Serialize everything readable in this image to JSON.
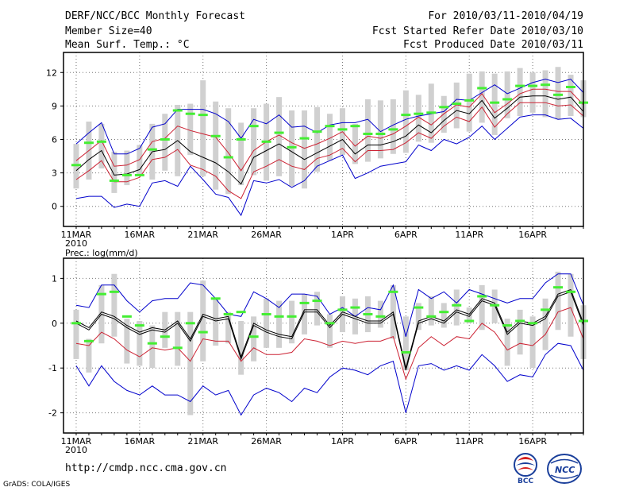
{
  "header": {
    "title": "DERF/NCC/BCC Monthly Forecast",
    "member_size": "Member Size=40",
    "variable": "Mean Surf. Temp.: °C",
    "period": "For 2010/03/11-2010/04/19",
    "started": "Fcst Started Refer Date 2010/03/10",
    "produced": "Fcst Produced Date 2010/03/11"
  },
  "footer": {
    "url": "http://cmdp.ncc.cma.gov.cn",
    "grads": "GrADS: COLA/IGES",
    "logo_bcc": "BCC",
    "logo_ncc": "NCC"
  },
  "colors": {
    "blue": "#0000cc",
    "red": "#cc2233",
    "black": "#000000",
    "green": "#44ee33",
    "gray": "#d0d0d0",
    "grid": "#777777"
  },
  "chart_data": [
    {
      "type": "line",
      "title": "Mean Surf. Temp.: °C",
      "x_labels": [
        "11MAR",
        "16MAR",
        "21MAR",
        "26MAR",
        "1APR",
        "6APR",
        "11APR",
        "16APR"
      ],
      "x_label_days": [
        1,
        6,
        11,
        16,
        22,
        27,
        32,
        37
      ],
      "year_label": "2010",
      "xlim": [
        0,
        41
      ],
      "ylim": [
        -1.8,
        13.8
      ],
      "yticks": [
        0,
        3,
        6,
        9,
        12
      ],
      "grid": true,
      "series": [
        {
          "name": "max",
          "color": "blue",
          "values": [
            5.6,
            6.6,
            7.5,
            4.7,
            4.7,
            5.2,
            7.1,
            7.4,
            8.7,
            8.7,
            8.7,
            8.3,
            7.6,
            6.1,
            7.8,
            7.4,
            8.2,
            7.1,
            7.2,
            6.6,
            7.3,
            7.5,
            7.5,
            7.8,
            6.7,
            7.3,
            7.8,
            8.1,
            8.3,
            8.5,
            9.6,
            9.5,
            10.2,
            10.9,
            10.1,
            10.6,
            11.1,
            11.4,
            11.1,
            11.4,
            10.2
          ]
        },
        {
          "name": "upper",
          "color": "red",
          "values": [
            4.1,
            5.0,
            5.9,
            3.6,
            3.7,
            4.2,
            5.8,
            6.1,
            7.2,
            6.8,
            6.5,
            6.2,
            4.8,
            3.2,
            5.0,
            5.8,
            6.4,
            5.7,
            5.2,
            5.6,
            6.1,
            6.7,
            5.4,
            6.3,
            6.1,
            6.5,
            7.2,
            8.0,
            7.3,
            8.3,
            9.1,
            8.9,
            10.1,
            8.4,
            9.2,
            10.1,
            10.5,
            10.5,
            10.3,
            10.3,
            9.1
          ]
        },
        {
          "name": "median",
          "color": "black",
          "values": [
            3.2,
            4.2,
            5.0,
            2.8,
            2.9,
            3.3,
            4.9,
            5.1,
            5.9,
            4.9,
            4.4,
            3.9,
            3.1,
            2.0,
            4.4,
            5.0,
            5.6,
            4.9,
            4.2,
            4.8,
            5.4,
            6.0,
            4.7,
            5.5,
            5.5,
            5.8,
            6.3,
            7.3,
            6.6,
            7.7,
            8.6,
            8.3,
            9.5,
            7.9,
            8.8,
            9.8,
            9.9,
            9.9,
            9.6,
            9.8,
            8.5
          ]
        },
        {
          "name": "lower",
          "color": "red",
          "values": [
            2.4,
            3.2,
            4.1,
            2.2,
            2.2,
            2.6,
            4.2,
            4.4,
            5.1,
            3.7,
            3.3,
            2.7,
            1.4,
            0.7,
            3.1,
            3.6,
            4.2,
            3.6,
            3.3,
            4.3,
            4.6,
            5.2,
            4.0,
            5.0,
            5.0,
            5.1,
            5.7,
            6.6,
            6.1,
            7.2,
            8.0,
            7.6,
            8.9,
            7.1,
            8.3,
            9.3,
            9.3,
            9.3,
            9.0,
            9.1,
            8.1
          ]
        },
        {
          "name": "min",
          "color": "blue",
          "values": [
            0.7,
            0.9,
            0.9,
            -0.1,
            0.2,
            0.0,
            2.1,
            2.3,
            1.8,
            3.6,
            2.4,
            1.1,
            0.8,
            -0.8,
            2.3,
            2.1,
            2.4,
            1.7,
            2.3,
            3.6,
            4.1,
            4.6,
            2.5,
            3.0,
            3.6,
            3.8,
            4.0,
            5.5,
            5.0,
            6.0,
            5.6,
            6.2,
            7.2,
            6.0,
            7.0,
            8.0,
            8.2,
            8.2,
            7.8,
            7.9,
            7.0
          ]
        }
      ],
      "ensemble_ranges": [
        [
          1.6,
          5.6
        ],
        [
          2.4,
          7.6
        ],
        [
          3.4,
          7.4
        ],
        [
          1.2,
          4.9
        ],
        [
          1.9,
          5.0
        ],
        [
          2.8,
          5.5
        ],
        [
          2.4,
          7.4
        ],
        [
          3.2,
          8.3
        ],
        [
          2.7,
          9.1
        ],
        [
          4.6,
          9.2
        ],
        [
          2.7,
          11.3
        ],
        [
          1.5,
          9.4
        ],
        [
          1.1,
          8.8
        ],
        [
          1.9,
          7.5
        ],
        [
          2.8,
          8.8
        ],
        [
          2.3,
          9.2
        ],
        [
          2.7,
          9.8
        ],
        [
          1.8,
          8.6
        ],
        [
          1.6,
          8.6
        ],
        [
          3.1,
          8.9
        ],
        [
          4.1,
          8.3
        ],
        [
          4.6,
          8.8
        ],
        [
          3.8,
          7.4
        ],
        [
          4.0,
          9.6
        ],
        [
          4.3,
          9.5
        ],
        [
          4.7,
          9.6
        ],
        [
          4.8,
          10.4
        ],
        [
          5.8,
          10.0
        ],
        [
          5.7,
          11.0
        ],
        [
          6.6,
          9.9
        ],
        [
          7.0,
          11.1
        ],
        [
          6.7,
          11.9
        ],
        [
          7.5,
          12.1
        ],
        [
          6.4,
          11.9
        ],
        [
          7.9,
          12.1
        ],
        [
          8.1,
          12.4
        ],
        [
          8.4,
          12.0
        ],
        [
          8.0,
          12.2
        ],
        [
          7.8,
          12.5
        ],
        [
          8.1,
          11.8
        ],
        [
          8.0,
          11.3
        ]
      ],
      "ensemble_mean": [
        3.7,
        5.7,
        5.8,
        2.3,
        2.8,
        2.8,
        5.1,
        6.0,
        8.6,
        8.3,
        8.2,
        6.3,
        4.4,
        6.0,
        7.2,
        5.8,
        6.6,
        5.3,
        6.1,
        6.7,
        7.2,
        6.9,
        7.2,
        6.5,
        6.5,
        6.9,
        8.2,
        8.3,
        8.4,
        8.9,
        9.2,
        9.5,
        10.6,
        9.3,
        9.6,
        10.8,
        10.8,
        10.9,
        10.0,
        10.7,
        9.3
      ]
    },
    {
      "type": "line",
      "title": "Prec.: log(mm/d)",
      "x_labels": [
        "11MAR",
        "16MAR",
        "21MAR",
        "26MAR",
        "1APR",
        "6APR",
        "11APR",
        "16APR"
      ],
      "x_label_days": [
        1,
        6,
        11,
        16,
        22,
        27,
        32,
        37
      ],
      "year_label": "2010",
      "xlim": [
        0,
        41
      ],
      "ylim": [
        -2.45,
        1.45
      ],
      "yticks": [
        -2,
        -1,
        0,
        1
      ],
      "grid": true,
      "series": [
        {
          "name": "max",
          "color": "blue",
          "values": [
            0.4,
            0.35,
            0.85,
            0.85,
            0.5,
            0.25,
            0.5,
            0.55,
            0.55,
            0.9,
            0.85,
            0.55,
            0.2,
            0.15,
            0.7,
            0.55,
            0.35,
            0.65,
            0.65,
            0.6,
            0.2,
            0.35,
            0.15,
            0.35,
            0.3,
            0.85,
            -0.3,
            0.75,
            0.55,
            0.7,
            0.45,
            0.75,
            0.65,
            0.55,
            0.45,
            0.55,
            0.55,
            0.9,
            1.1,
            1.1,
            0.4
          ]
        },
        {
          "name": "upper",
          "color": "black",
          "values": [
            0.05,
            -0.1,
            0.25,
            0.15,
            -0.05,
            -0.2,
            -0.1,
            -0.15,
            0.05,
            -0.35,
            0.2,
            0.1,
            0.15,
            -0.75,
            0.0,
            -0.15,
            -0.25,
            -0.3,
            0.3,
            0.3,
            -0.05,
            0.25,
            0.15,
            0.05,
            0.05,
            0.25,
            -1.0,
            0.05,
            0.15,
            0.05,
            0.3,
            0.2,
            0.55,
            0.45,
            -0.2,
            0.05,
            0.0,
            0.15,
            0.65,
            0.75,
            0.0
          ]
        },
        {
          "name": "median",
          "color": "black",
          "values": [
            0.0,
            -0.15,
            0.2,
            0.1,
            -0.1,
            -0.25,
            -0.15,
            -0.2,
            0.0,
            -0.4,
            0.15,
            0.05,
            0.1,
            -0.8,
            -0.05,
            -0.2,
            -0.3,
            -0.35,
            0.25,
            0.25,
            -0.1,
            0.2,
            0.1,
            0.0,
            0.0,
            0.2,
            -1.05,
            0.0,
            0.1,
            0.0,
            0.25,
            0.15,
            0.5,
            0.4,
            -0.25,
            0.0,
            -0.05,
            0.1,
            0.6,
            0.7,
            -0.05
          ]
        },
        {
          "name": "lower",
          "color": "red",
          "values": [
            -0.45,
            -0.5,
            -0.2,
            -0.35,
            -0.6,
            -0.75,
            -0.55,
            -0.6,
            -0.55,
            -0.85,
            -0.35,
            -0.4,
            -0.4,
            -0.85,
            -0.55,
            -0.7,
            -0.7,
            -0.65,
            -0.35,
            -0.4,
            -0.5,
            -0.4,
            -0.45,
            -0.4,
            -0.4,
            -0.3,
            -1.25,
            -0.55,
            -0.3,
            -0.5,
            -0.3,
            -0.35,
            0.0,
            -0.2,
            -0.6,
            -0.45,
            -0.5,
            -0.25,
            0.25,
            0.35,
            -0.35
          ]
        },
        {
          "name": "min",
          "color": "blue",
          "values": [
            -0.95,
            -1.4,
            -0.95,
            -1.3,
            -1.5,
            -1.6,
            -1.4,
            -1.6,
            -1.6,
            -1.75,
            -1.4,
            -1.6,
            -1.5,
            -2.05,
            -1.6,
            -1.45,
            -1.55,
            -1.75,
            -1.45,
            -1.55,
            -1.2,
            -1.0,
            -1.05,
            -1.15,
            -0.95,
            -0.85,
            -2.0,
            -0.95,
            -0.9,
            -1.05,
            -0.95,
            -1.05,
            -0.7,
            -0.95,
            -1.3,
            -1.15,
            -1.2,
            -0.7,
            -0.45,
            -0.5,
            -1.05
          ]
        }
      ],
      "ensemble_ranges": [
        [
          -0.8,
          0.3
        ],
        [
          -1.1,
          -0.35
        ],
        [
          -0.45,
          0.85
        ],
        [
          -0.3,
          1.1
        ],
        [
          -0.9,
          0.1
        ],
        [
          -0.95,
          0.05
        ],
        [
          -1.0,
          -0.05
        ],
        [
          -0.55,
          0.25
        ],
        [
          -0.95,
          0.25
        ],
        [
          -2.05,
          0.25
        ],
        [
          -0.85,
          0.95
        ],
        [
          -0.5,
          0.55
        ],
        [
          -0.45,
          0.25
        ],
        [
          -1.15,
          0.05
        ],
        [
          -0.85,
          0.15
        ],
        [
          -0.55,
          0.55
        ],
        [
          -0.55,
          0.5
        ],
        [
          -0.45,
          0.5
        ],
        [
          -0.25,
          0.65
        ],
        [
          -0.05,
          0.7
        ],
        [
          -0.55,
          0.2
        ],
        [
          -0.2,
          0.6
        ],
        [
          -0.25,
          0.55
        ],
        [
          -0.2,
          0.6
        ],
        [
          -0.1,
          0.5
        ],
        [
          -0.35,
          0.85
        ],
        [
          -1.05,
          0.15
        ],
        [
          -0.15,
          0.45
        ],
        [
          -0.05,
          0.6
        ],
        [
          -0.1,
          0.45
        ],
        [
          -0.05,
          0.75
        ],
        [
          0.0,
          0.35
        ],
        [
          -0.15,
          0.85
        ],
        [
          0.0,
          0.75
        ],
        [
          -0.95,
          0.1
        ],
        [
          -0.7,
          0.3
        ],
        [
          -1.0,
          0.15
        ],
        [
          -0.6,
          0.55
        ],
        [
          -0.15,
          1.15
        ],
        [
          -0.3,
          1.1
        ],
        [
          -0.8,
          0.4
        ]
      ],
      "ensemble_mean": [
        0.0,
        -0.4,
        0.65,
        0.7,
        0.15,
        -0.05,
        -0.45,
        -0.3,
        -0.55,
        0.0,
        -0.2,
        0.55,
        0.2,
        0.25,
        -0.3,
        0.2,
        0.15,
        0.15,
        0.45,
        0.5,
        0.0,
        0.3,
        0.35,
        0.2,
        0.15,
        0.7,
        -0.65,
        0.35,
        0.15,
        0.25,
        0.4,
        0.05,
        0.6,
        0.4,
        -0.05,
        0.05,
        0.0,
        0.3,
        0.8,
        0.7,
        0.05
      ]
    }
  ]
}
